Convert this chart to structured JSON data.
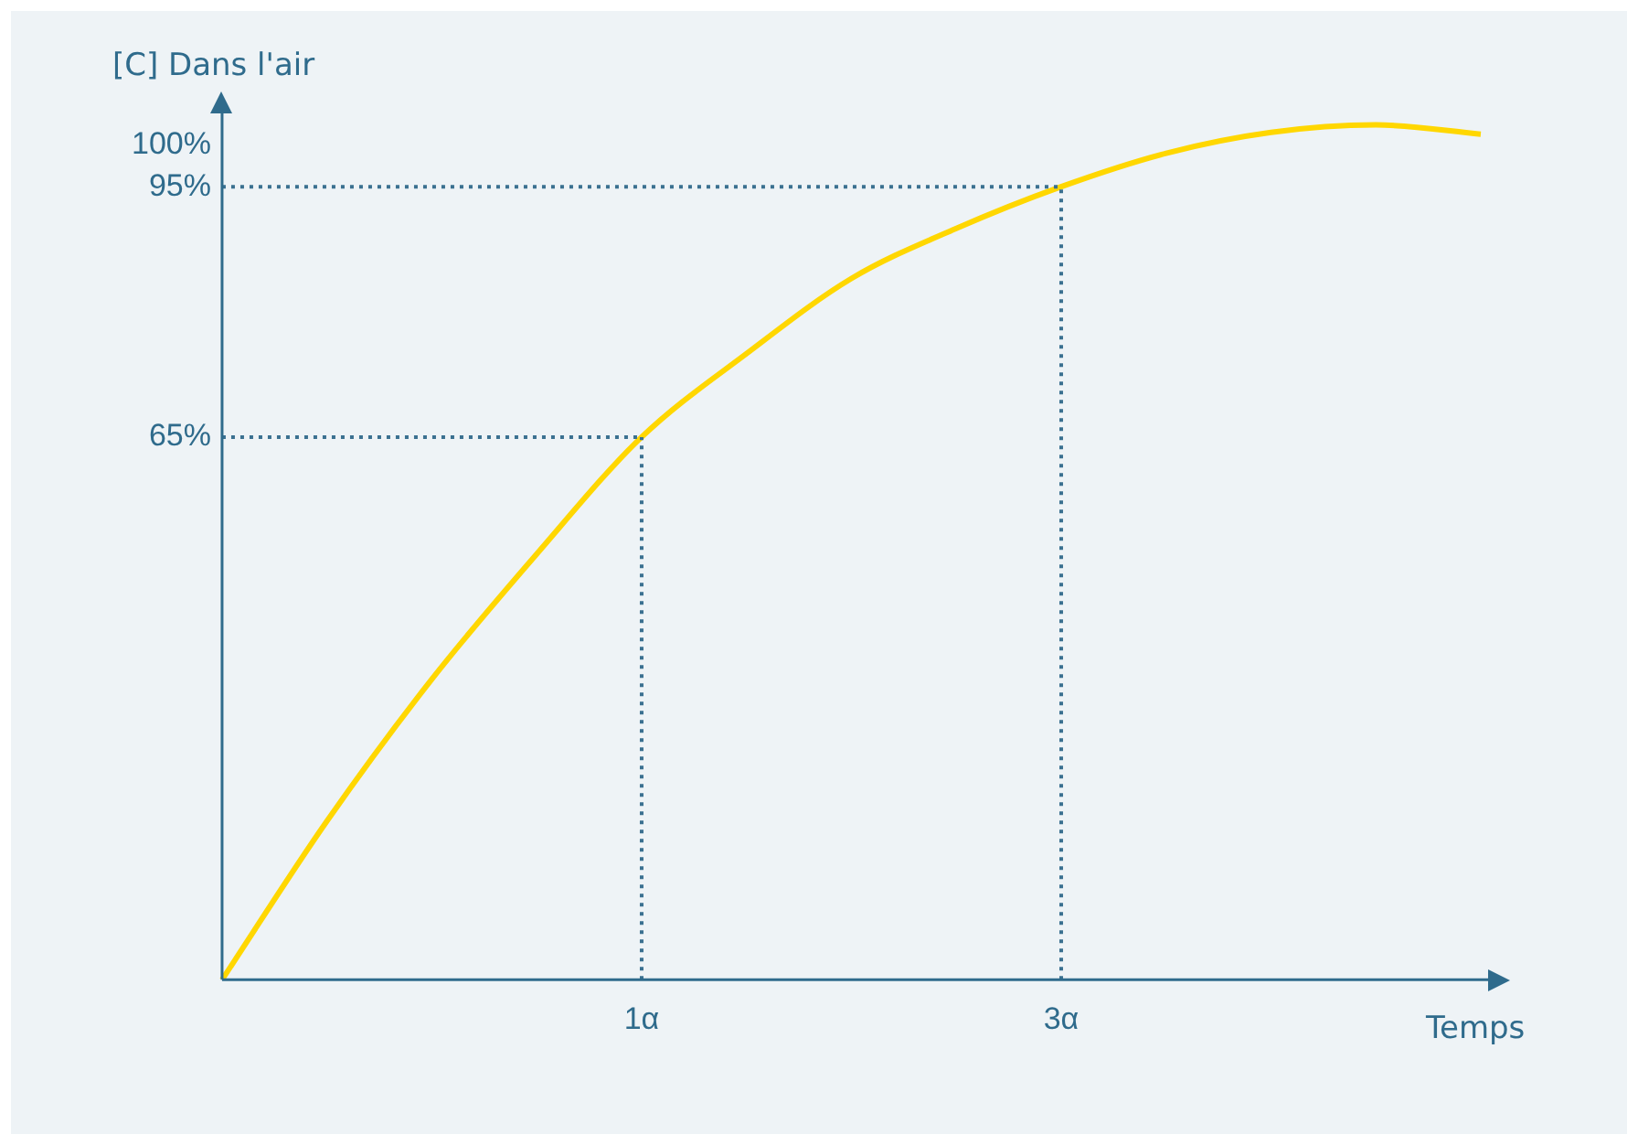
{
  "chart_data": {
    "type": "line",
    "xlabel": "Temps",
    "ylabel": "[C] Dans l'air",
    "categories": [
      null,
      null,
      null,
      null,
      "1α",
      null,
      null,
      null,
      "3α",
      null,
      null,
      null,
      null
    ],
    "ylim": [
      0,
      104
    ],
    "yticks": [
      {
        "value": 65,
        "label": "65%"
      },
      {
        "value": 95,
        "label": "95%"
      },
      {
        "value": 100,
        "label": "100%"
      }
    ],
    "grid": false,
    "marker": "none",
    "legend": false,
    "series": [
      {
        "color": "#ffd700",
        "values": [
          0,
          19,
          36,
          51,
          65,
          75,
          84,
          90,
          95,
          99,
          101.5,
          102.4,
          101.3
        ]
      }
    ],
    "ref_lines": [
      {
        "axis": "y",
        "value": 65,
        "color": "#3a7090",
        "line_style": "dotted"
      },
      {
        "axis": "x",
        "value": "1α",
        "color": "#3a7090",
        "line_style": "dotted"
      },
      {
        "axis": "y",
        "value": 95,
        "color": "#3a7090",
        "line_style": "dotted"
      },
      {
        "axis": "x",
        "value": "3α",
        "color": "#3a7090",
        "line_style": "dotted"
      }
    ]
  }
}
